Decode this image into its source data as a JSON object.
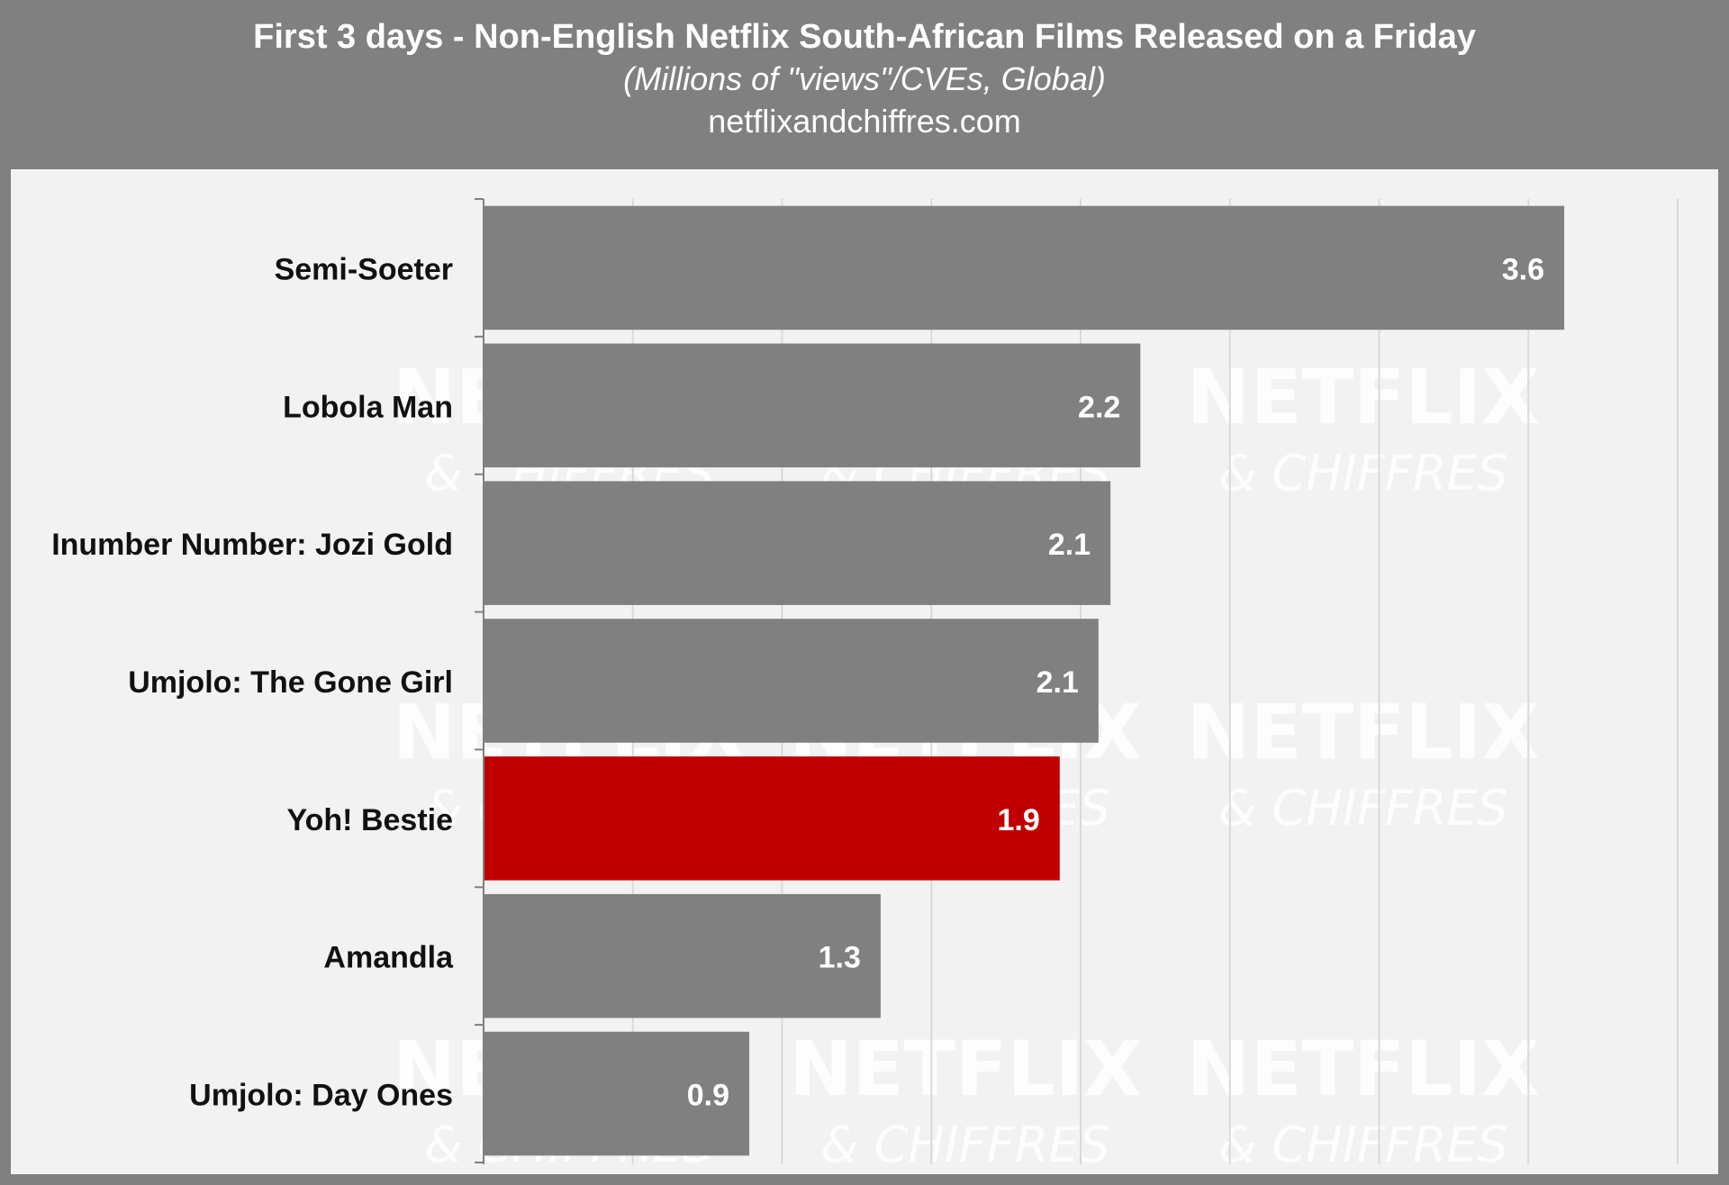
{
  "header": {
    "title": "First 3 days - Non-English Netflix South-African Films Released on a Friday",
    "subtitle": "(Millions of \"views\"/CVEs, Global)",
    "source": "netflixandchiffres.com"
  },
  "watermark": {
    "line1": "NETFLIX",
    "line2": "& CHIFFRES"
  },
  "colors": {
    "default_bar": "#808080",
    "highlight_bar": "#c00000",
    "grid": "#d9d9d9",
    "label": "#111111",
    "value_label": "#ffffff"
  },
  "chart_data": {
    "type": "bar",
    "orientation": "horizontal",
    "title": "First 3 days - Non-English Netflix South-African Films Released on a Friday",
    "subtitle": "(Millions of \"views\"/CVEs, Global)",
    "xlabel": "",
    "ylabel": "",
    "xlim": [
      0,
      4
    ],
    "grid": true,
    "categories": [
      "Semi-Soeter",
      "Lobola Man",
      "Inumber Number: Jozi Gold",
      "Umjolo: The Gone Girl",
      "Yoh! Bestie",
      "Amandla",
      "Umjolo: Day Ones"
    ],
    "values": [
      3.62,
      2.2,
      2.1,
      2.06,
      1.93,
      1.33,
      0.89
    ],
    "value_labels": [
      "3.6",
      "2.2",
      "2.1",
      "2.1",
      "1.9",
      "1.3",
      "0.9"
    ],
    "highlight": "Yoh! Bestie"
  }
}
